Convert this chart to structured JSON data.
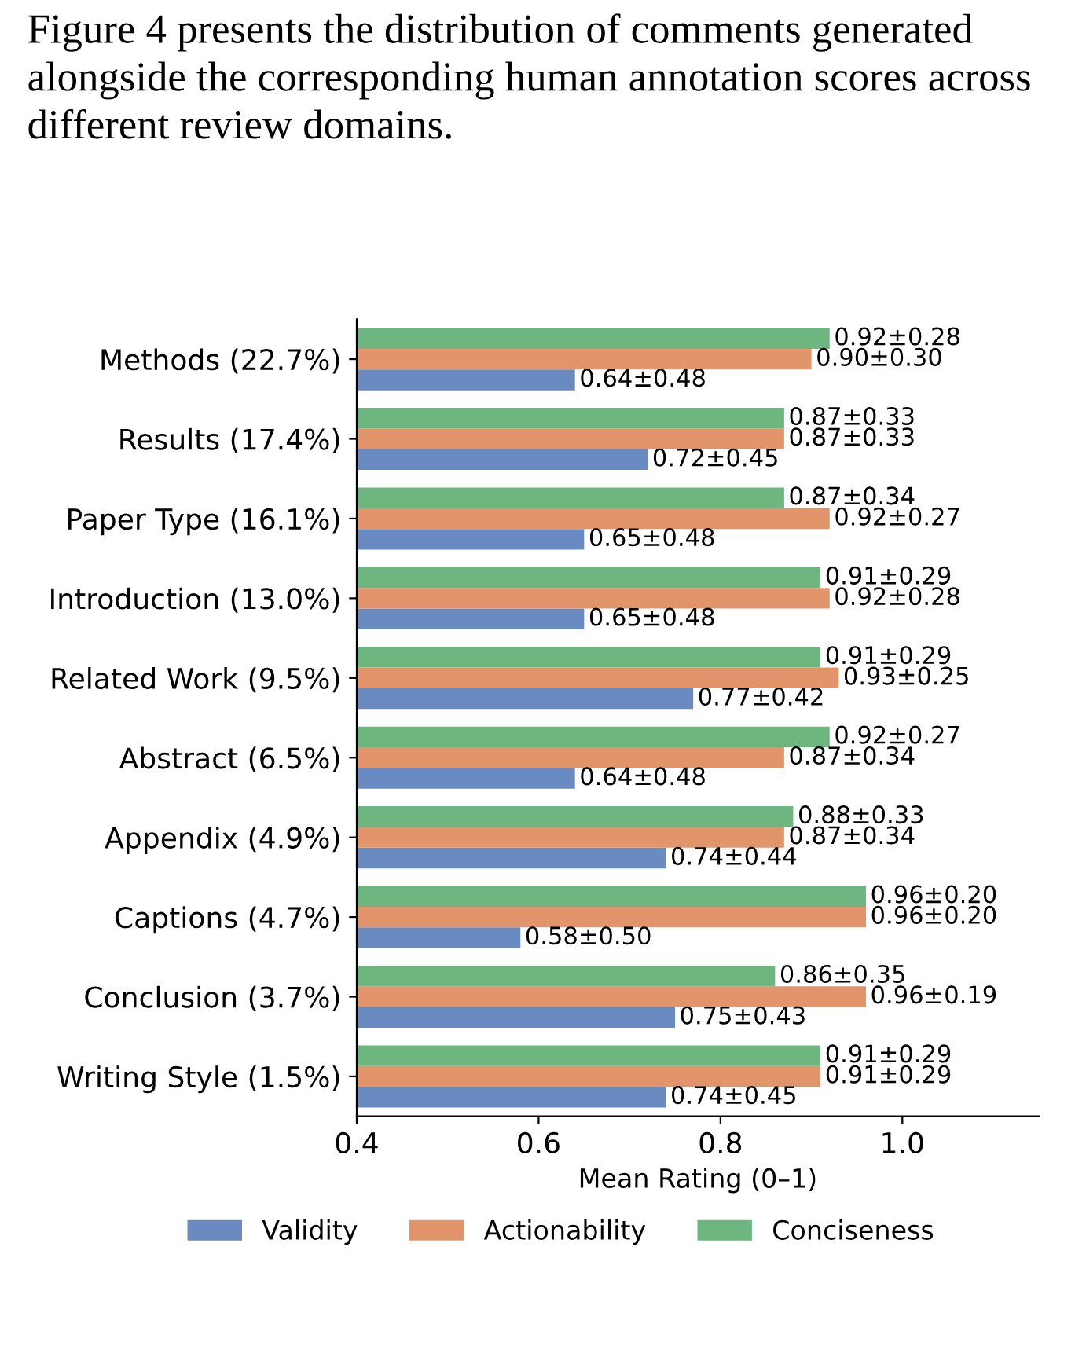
{
  "chart_data": {
    "type": "bar",
    "orientation": "horizontal",
    "categories": [
      "Methods (22.7%)",
      "Results (17.4%)",
      "Paper Type (16.1%)",
      "Introduction (13.0%)",
      "Related Work (9.5%)",
      "Abstract (6.5%)",
      "Appendix (4.9%)",
      "Captions (4.7%)",
      "Conclusion (3.7%)",
      "Writing Style (1.5%)"
    ],
    "series": [
      {
        "name": "Validity",
        "color": "#6a8bc2",
        "values": [
          0.64,
          0.72,
          0.65,
          0.65,
          0.77,
          0.64,
          0.74,
          0.58,
          0.75,
          0.74
        ],
        "value_labels": [
          "0.64±0.48",
          "0.72±0.45",
          "0.65±0.48",
          "0.65±0.48",
          "0.77±0.42",
          "0.64±0.48",
          "0.74±0.44",
          "0.58±0.50",
          "0.75±0.43",
          "0.74±0.45"
        ]
      },
      {
        "name": "Actionability",
        "color": "#e2956a",
        "values": [
          0.9,
          0.87,
          0.92,
          0.92,
          0.93,
          0.87,
          0.87,
          0.96,
          0.96,
          0.91
        ],
        "value_labels": [
          "0.90±0.30",
          "0.87±0.33",
          "0.92±0.27",
          "0.92±0.28",
          "0.93±0.25",
          "0.87±0.34",
          "0.87±0.34",
          "0.96±0.20",
          "0.96±0.19",
          "0.91±0.29"
        ]
      },
      {
        "name": "Conciseness",
        "color": "#6db67f",
        "values": [
          0.92,
          0.87,
          0.87,
          0.91,
          0.91,
          0.92,
          0.88,
          0.96,
          0.86,
          0.91
        ],
        "value_labels": [
          "0.92±0.28",
          "0.87±0.33",
          "0.87±0.34",
          "0.91±0.29",
          "0.91±0.29",
          "0.92±0.27",
          "0.88±0.33",
          "0.96±0.20",
          "0.86±0.35",
          "0.91±0.29"
        ]
      }
    ],
    "xlabel": "Mean Rating (0–1)",
    "xlim": [
      0.4,
      1.15
    ],
    "xticks": [
      0.4,
      0.6,
      0.8,
      {
        "value": 1,
        "label": "1.0"
      }
    ],
    "legend": "bottom",
    "grid": false,
    "annotations": [
      "Figure 4 presents the distribution of comments generated alongside the corresponding human annotation scores across different review domains."
    ]
  }
}
